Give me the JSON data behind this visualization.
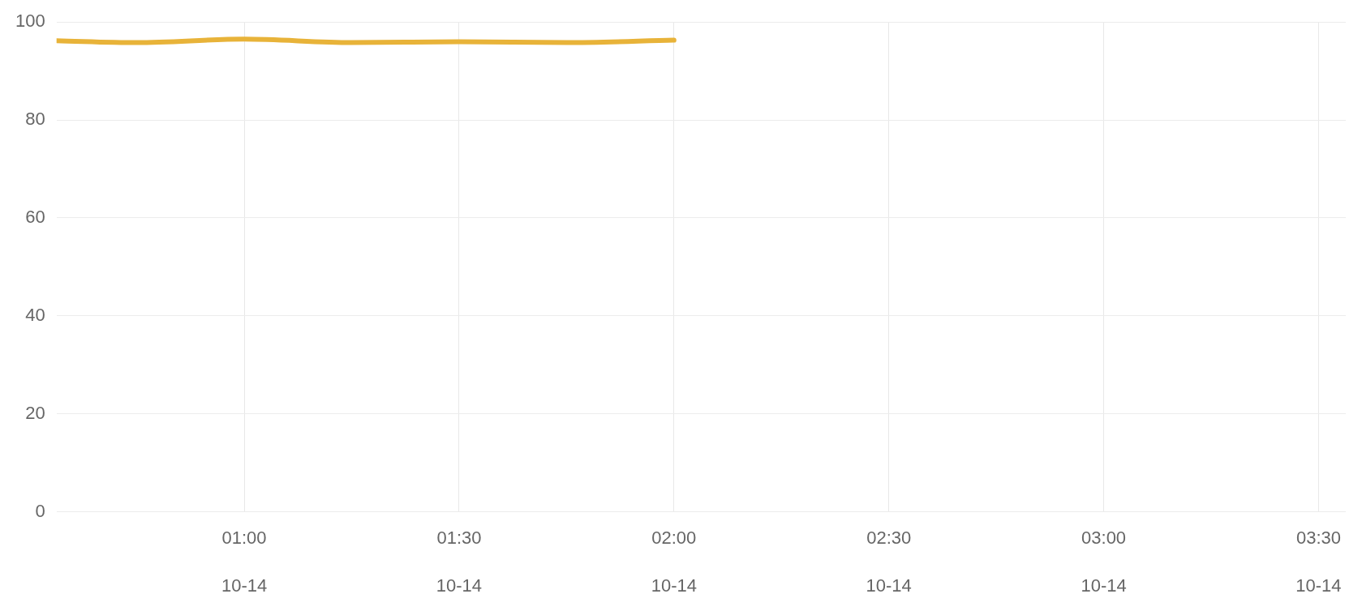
{
  "chart_data": {
    "type": "line",
    "x": [
      0.5633,
      0.75,
      1,
      1.25,
      1.5,
      1.75,
      2
    ],
    "series": [
      {
        "color": "#e8b339",
        "values": [
          96.2,
          95.8,
          96.5,
          95.8,
          96,
          95.8,
          96.3
        ]
      }
    ],
    "xlim": [
      0.5633,
      3.5633
    ],
    "xticks": [
      {
        "value": 1,
        "label": "01:00"
      },
      {
        "value": 1.5,
        "label": "01:30"
      },
      {
        "value": 2,
        "label": "02:00"
      },
      {
        "value": 2.5,
        "label": "02:30"
      },
      {
        "value": 3,
        "label": "03:00"
      },
      {
        "value": 3.5,
        "label": "03:30"
      }
    ],
    "annotations": [
      "10-14",
      "10-14",
      "10-14",
      "10-14",
      "10-14",
      "10-14"
    ],
    "ylim": [
      0,
      100
    ],
    "yticks": [
      0,
      20,
      40,
      60,
      80,
      100
    ],
    "grid": true,
    "legend": false,
    "marker": "none",
    "line_style": "solid"
  }
}
